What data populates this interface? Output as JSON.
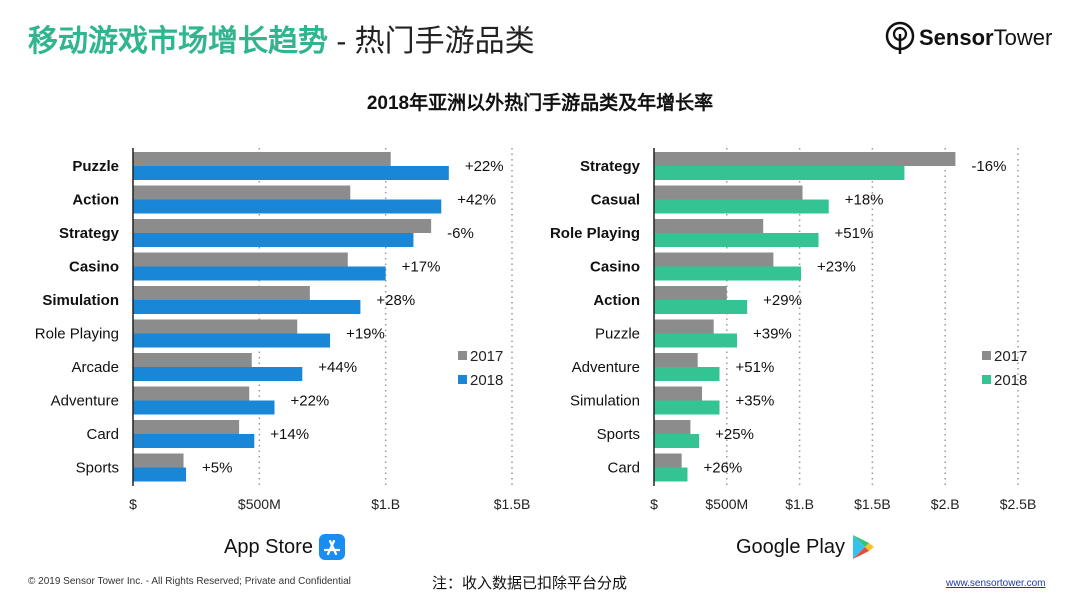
{
  "header": {
    "title_main": "移动游戏市场增长趋势",
    "title_sub": " - 热门手游品类",
    "logo_text_bold": "Sensor",
    "logo_text_light": "Tower"
  },
  "chart_title": "2018年亚洲以外热门手游品类及年增长率",
  "footer": {
    "copyright": "© 2019 Sensor Tower Inc. - All Rights Reserved; Private and Confidential",
    "note": "注：收入数据已扣除平台分成",
    "url": "www.sensortower.com"
  },
  "colors": {
    "y2017": "#8c8c8c",
    "appstore": "#1a87d6",
    "googleplay": "#34c393",
    "title_accent": "#2fb58f"
  },
  "chart_data": [
    {
      "type": "bar",
      "orientation": "horizontal",
      "platform": "App Store",
      "platform_icon": "app-store-icon",
      "categories": [
        "Puzzle",
        "Action",
        "Strategy",
        "Casino",
        "Simulation",
        "Role Playing",
        "Arcade",
        "Adventure",
        "Card",
        "Sports"
      ],
      "bold_categories": 5,
      "series": [
        {
          "name": "2017",
          "values": [
            1.02,
            0.86,
            1.18,
            0.85,
            0.7,
            0.65,
            0.47,
            0.46,
            0.42,
            0.2
          ]
        },
        {
          "name": "2018",
          "values": [
            1.25,
            1.22,
            1.11,
            1.0,
            0.9,
            0.78,
            0.67,
            0.56,
            0.48,
            0.21
          ]
        }
      ],
      "growth_labels": [
        "+22%",
        "+42%",
        "-6%",
        "+17%",
        "+28%",
        "+19%",
        "+44%",
        "+22%",
        "+14%",
        "+5%"
      ],
      "unit": "USD billions",
      "xlim": [
        0,
        1.5
      ],
      "xticks": [
        0,
        0.5,
        1.0,
        1.5
      ],
      "xtick_labels": [
        "$",
        "$500M",
        "$1.B",
        "$1.5B"
      ],
      "grid": "vertical dotted",
      "legend": "right"
    },
    {
      "type": "bar",
      "orientation": "horizontal",
      "platform": "Google Play",
      "platform_icon": "google-play-icon",
      "categories": [
        "Strategy",
        "Casual",
        "Role Playing",
        "Casino",
        "Action",
        "Puzzle",
        "Adventure",
        "Simulation",
        "Sports",
        "Card"
      ],
      "bold_categories": 5,
      "series": [
        {
          "name": "2017",
          "values": [
            2.07,
            1.02,
            0.75,
            0.82,
            0.5,
            0.41,
            0.3,
            0.33,
            0.25,
            0.19
          ]
        },
        {
          "name": "2018",
          "values": [
            1.72,
            1.2,
            1.13,
            1.01,
            0.64,
            0.57,
            0.45,
            0.45,
            0.31,
            0.23
          ]
        }
      ],
      "growth_labels": [
        "-16%",
        "+18%",
        "+51%",
        "+23%",
        "+29%",
        "+39%",
        "+51%",
        "+35%",
        "+25%",
        "+26%"
      ],
      "unit": "USD billions",
      "xlim": [
        0,
        2.5
      ],
      "xticks": [
        0,
        0.5,
        1.0,
        1.5,
        2.0,
        2.5
      ],
      "xtick_labels": [
        "$",
        "$500M",
        "$1.B",
        "$1.5B",
        "$2.B",
        "$2.5B"
      ],
      "grid": "vertical dotted",
      "legend": "right"
    }
  ]
}
